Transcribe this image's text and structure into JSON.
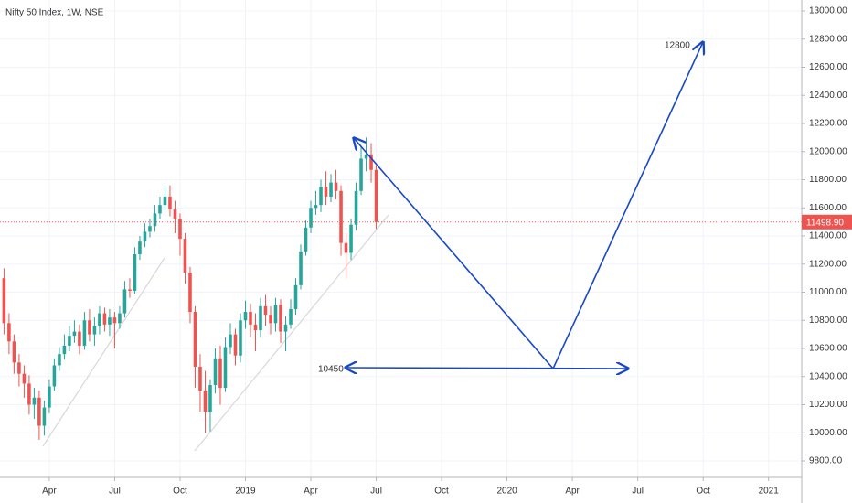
{
  "chart_data": {
    "type": "candlestick",
    "title": "Nifty 50 Index, 1W, NSE",
    "x": [
      4,
      5,
      6,
      7,
      8,
      9,
      10,
      11,
      12,
      13,
      14,
      15,
      16,
      17,
      18,
      19,
      20,
      21,
      22,
      23,
      24,
      25,
      26,
      27,
      28,
      29,
      30,
      31,
      32,
      33,
      34,
      35,
      36,
      37,
      38,
      39,
      40,
      41,
      42,
      43,
      44,
      45,
      46,
      47,
      48,
      49,
      50,
      51,
      52,
      53,
      54,
      55,
      56,
      57,
      58,
      59,
      60,
      61,
      62,
      63,
      64,
      65,
      66,
      67,
      68,
      69,
      70,
      71,
      72,
      73,
      74,
      75,
      76,
      77,
      78
    ],
    "open": [
      11100,
      10780,
      10650,
      10500,
      10420,
      10350,
      10200,
      10250,
      10050,
      10180,
      10330,
      10480,
      10560,
      10620,
      10690,
      10720,
      10620,
      10800,
      10700,
      10760,
      10850,
      10770,
      10820,
      10780,
      10850,
      11020,
      11010,
      11270,
      11360,
      11430,
      11470,
      11560,
      11620,
      11680,
      11590,
      11520,
      11380,
      11140,
      10860,
      10470,
      10300,
      10150,
      10340,
      10530,
      10320,
      10610,
      10700,
      10550,
      10800,
      10860,
      10770,
      10730,
      10900,
      10840,
      10780,
      10910,
      10720,
      10770,
      10880,
      11050,
      11290,
      11460,
      11600,
      11620,
      11750,
      11680,
      11780,
      11720,
      11350,
      11280,
      11480,
      11720,
      11950,
      11980,
      11870
    ],
    "high": [
      11170,
      10850,
      10700,
      10560,
      10480,
      10410,
      10320,
      10300,
      10230,
      10380,
      10530,
      10610,
      10700,
      10760,
      10800,
      10770,
      10860,
      10880,
      10820,
      10900,
      10890,
      10880,
      10860,
      10900,
      11080,
      11100,
      11320,
      11400,
      11490,
      11520,
      11620,
      11680,
      11760,
      11760,
      11650,
      11560,
      11420,
      11180,
      10900,
      10560,
      10440,
      10380,
      10600,
      10620,
      10680,
      10780,
      10740,
      10850,
      10940,
      10920,
      10850,
      10960,
      10980,
      10900,
      10960,
      10950,
      10830,
      10950,
      11100,
      11340,
      11510,
      11650,
      11720,
      11800,
      11860,
      11840,
      11870,
      11760,
      11420,
      11520,
      11780,
      12040,
      12100,
      12060,
      11900
    ],
    "low": [
      10700,
      10560,
      10420,
      10330,
      10250,
      10130,
      10100,
      9950,
      9980,
      10140,
      10300,
      10440,
      10520,
      10580,
      10640,
      10560,
      10590,
      10650,
      10620,
      10700,
      10720,
      10690,
      10600,
      10740,
      10820,
      10960,
      10990,
      11230,
      11320,
      11390,
      11430,
      11520,
      11580,
      11540,
      11420,
      11260,
      11060,
      10780,
      10320,
      10150,
      10000,
      10010,
      10280,
      10200,
      10290,
      10560,
      10480,
      10500,
      10740,
      10680,
      10580,
      10680,
      10760,
      10700,
      10720,
      10640,
      10580,
      10740,
      10840,
      11020,
      11260,
      11420,
      11550,
      11570,
      11620,
      11640,
      11660,
      11260,
      11100,
      11230,
      11440,
      11690,
      11860,
      11780,
      11450
    ],
    "close": [
      10780,
      10650,
      10500,
      10420,
      10350,
      10200,
      10250,
      10050,
      10180,
      10330,
      10480,
      10560,
      10620,
      10690,
      10720,
      10620,
      10800,
      10700,
      10760,
      10850,
      10770,
      10820,
      10780,
      10850,
      11020,
      11010,
      11270,
      11360,
      11430,
      11470,
      11560,
      11620,
      11680,
      11590,
      11520,
      11380,
      11140,
      10860,
      10470,
      10300,
      10150,
      10340,
      10530,
      10320,
      10610,
      10700,
      10550,
      10800,
      10860,
      10770,
      10730,
      10900,
      10840,
      10780,
      10910,
      10720,
      10770,
      10880,
      11050,
      11290,
      11460,
      11600,
      11620,
      11750,
      11680,
      11780,
      11720,
      11350,
      11280,
      11480,
      11720,
      11950,
      11980,
      11870,
      11498.9
    ],
    "up_color": "#26a69a",
    "down_color": "#ef5350",
    "xlim": [
      3.2,
      162.6
    ],
    "xticks": [
      {
        "value": 13,
        "label": "Apr"
      },
      {
        "value": 26,
        "label": "Jul"
      },
      {
        "value": 39,
        "label": "Oct"
      },
      {
        "value": 52,
        "label": "2019"
      },
      {
        "value": 65,
        "label": "Apr"
      },
      {
        "value": 78,
        "label": "Jul"
      },
      {
        "value": 91,
        "label": "Oct"
      },
      {
        "value": 104,
        "label": "2020"
      },
      {
        "value": 117,
        "label": "Apr"
      },
      {
        "value": 130,
        "label": "Jul"
      },
      {
        "value": 143,
        "label": "Oct"
      },
      {
        "value": 156,
        "label": "2021"
      }
    ],
    "ylim": [
      9683,
      13078
    ],
    "yticks": [
      {
        "value": 9800,
        "label": "9800.00"
      },
      {
        "value": 10000,
        "label": "10000.00"
      },
      {
        "value": 10200,
        "label": "10200.00"
      },
      {
        "value": 10400,
        "label": "10400.00"
      },
      {
        "value": 10600,
        "label": "10600.00"
      },
      {
        "value": 10800,
        "label": "10800.00"
      },
      {
        "value": 11000,
        "label": "11000.00"
      },
      {
        "value": 11200,
        "label": "11200.00"
      },
      {
        "value": 11400,
        "label": "11400.00"
      },
      {
        "value": 11600,
        "label": "11600.00"
      },
      {
        "value": 11800,
        "label": "11800.00"
      },
      {
        "value": 12000,
        "label": "12000.00"
      },
      {
        "value": 12200,
        "label": "12200.00"
      },
      {
        "value": 12400,
        "label": "12400.00"
      },
      {
        "value": 12600,
        "label": "12600.00"
      },
      {
        "value": 12800,
        "label": "12800.00"
      },
      {
        "value": 13000,
        "label": "13000.00"
      }
    ],
    "grid": true,
    "last_price": {
      "value": 11498.9,
      "label": "11498.90"
    },
    "annotations": [
      "12800",
      "10450"
    ]
  }
}
